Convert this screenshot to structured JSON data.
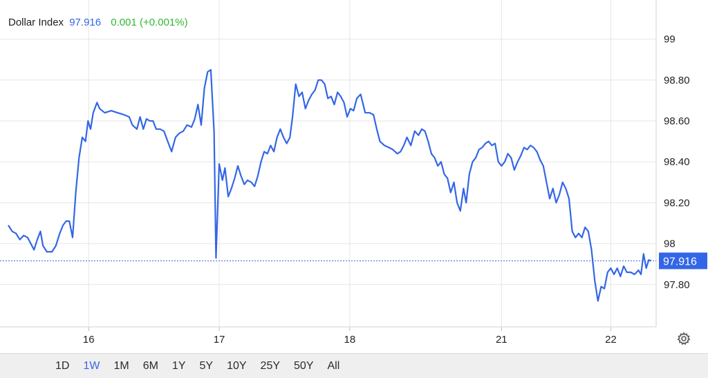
{
  "header": {
    "name": "Dollar Index",
    "price": "97.916",
    "change": "0.001 (+0.001%)"
  },
  "colors": {
    "line": "#3366e6",
    "change": "#2eb82e",
    "grid": "#e6e6e6"
  },
  "range_tabs": [
    {
      "label": "1D",
      "active": false
    },
    {
      "label": "1W",
      "active": true
    },
    {
      "label": "1M",
      "active": false
    },
    {
      "label": "6M",
      "active": false
    },
    {
      "label": "1Y",
      "active": false
    },
    {
      "label": "5Y",
      "active": false
    },
    {
      "label": "10Y",
      "active": false
    },
    {
      "label": "25Y",
      "active": false
    },
    {
      "label": "50Y",
      "active": false
    },
    {
      "label": "All",
      "active": false
    }
  ],
  "icons": {
    "settings": "gear-icon"
  },
  "chart_data": {
    "type": "line",
    "title": "Dollar Index",
    "xlabel": "",
    "ylabel": "",
    "ylim": [
      97.6,
      99.15
    ],
    "xlim": [
      0,
      100
    ],
    "grid": true,
    "y_ticks": [
      {
        "value": 99,
        "label": "99"
      },
      {
        "value": 98.8,
        "label": "98.80"
      },
      {
        "value": 98.6,
        "label": "98.60"
      },
      {
        "value": 98.4,
        "label": "98.40"
      },
      {
        "value": 98.2,
        "label": "98.20"
      },
      {
        "value": 98.0,
        "label": "98"
      },
      {
        "value": 97.8,
        "label": "97.80"
      }
    ],
    "x_ticks": [
      {
        "value": 12.5,
        "label": "16"
      },
      {
        "value": 32.8,
        "label": "17"
      },
      {
        "value": 53.1,
        "label": "18"
      },
      {
        "value": 76.7,
        "label": "21"
      },
      {
        "value": 93.7,
        "label": "22"
      }
    ],
    "last_value": {
      "value": 97.916,
      "label": "97.916"
    },
    "series": [
      {
        "values": [
          [
            0,
            98.09
          ],
          [
            0.6,
            98.06
          ],
          [
            1.2,
            98.05
          ],
          [
            1.8,
            98.02
          ],
          [
            2.4,
            98.04
          ],
          [
            3,
            98.03
          ],
          [
            3.5,
            98.0
          ],
          [
            4,
            97.97
          ],
          [
            4.5,
            98.02
          ],
          [
            5,
            98.06
          ],
          [
            5.4,
            97.99
          ],
          [
            6,
            97.96
          ],
          [
            6.8,
            97.96
          ],
          [
            7.4,
            97.99
          ],
          [
            8,
            98.05
          ],
          [
            8.5,
            98.09
          ],
          [
            9,
            98.11
          ],
          [
            9.5,
            98.11
          ],
          [
            10,
            98.03
          ],
          [
            10.5,
            98.25
          ],
          [
            11,
            98.42
          ],
          [
            11.5,
            98.52
          ],
          [
            12,
            98.5
          ],
          [
            12.4,
            98.6
          ],
          [
            12.8,
            98.56
          ],
          [
            13.2,
            98.64
          ],
          [
            13.8,
            98.69
          ],
          [
            14.2,
            98.66
          ],
          [
            15,
            98.64
          ],
          [
            16,
            98.65
          ],
          [
            17,
            98.64
          ],
          [
            18,
            98.63
          ],
          [
            18.8,
            98.62
          ],
          [
            19.3,
            98.58
          ],
          [
            20,
            98.56
          ],
          [
            20.5,
            98.62
          ],
          [
            21,
            98.56
          ],
          [
            21.5,
            98.61
          ],
          [
            22,
            98.6
          ],
          [
            22.5,
            98.6
          ],
          [
            23,
            98.56
          ],
          [
            23.6,
            98.56
          ],
          [
            24.2,
            98.55
          ],
          [
            24.8,
            98.5
          ],
          [
            25.4,
            98.45
          ],
          [
            26,
            98.52
          ],
          [
            26.6,
            98.54
          ],
          [
            27.2,
            98.55
          ],
          [
            27.8,
            98.58
          ],
          [
            28.5,
            98.57
          ],
          [
            29,
            98.61
          ],
          [
            29.5,
            98.68
          ],
          [
            30,
            98.58
          ],
          [
            30.5,
            98.76
          ],
          [
            31,
            98.84
          ],
          [
            31.5,
            98.85
          ],
          [
            32,
            98.55
          ],
          [
            32.3,
            97.93
          ],
          [
            32.8,
            98.39
          ],
          [
            33.3,
            98.31
          ],
          [
            33.7,
            98.37
          ],
          [
            34.2,
            98.23
          ],
          [
            34.7,
            98.27
          ],
          [
            35.2,
            98.32
          ],
          [
            35.7,
            98.38
          ],
          [
            36.2,
            98.33
          ],
          [
            36.7,
            98.29
          ],
          [
            37.2,
            98.31
          ],
          [
            37.8,
            98.3
          ],
          [
            38.3,
            98.28
          ],
          [
            38.8,
            98.33
          ],
          [
            39.3,
            98.4
          ],
          [
            39.8,
            98.45
          ],
          [
            40.3,
            98.44
          ],
          [
            40.8,
            98.48
          ],
          [
            41.3,
            98.45
          ],
          [
            41.8,
            98.52
          ],
          [
            42.3,
            98.56
          ],
          [
            42.8,
            98.52
          ],
          [
            43.3,
            98.49
          ],
          [
            43.8,
            98.52
          ],
          [
            44.2,
            98.62
          ],
          [
            44.7,
            98.78
          ],
          [
            45.2,
            98.72
          ],
          [
            45.7,
            98.74
          ],
          [
            46.2,
            98.66
          ],
          [
            46.7,
            98.7
          ],
          [
            47.2,
            98.73
          ],
          [
            47.7,
            98.75
          ],
          [
            48.2,
            98.8
          ],
          [
            48.7,
            98.8
          ],
          [
            49.2,
            98.78
          ],
          [
            49.7,
            98.71
          ],
          [
            50.2,
            98.72
          ],
          [
            50.7,
            98.68
          ],
          [
            51.2,
            98.74
          ],
          [
            51.7,
            98.72
          ],
          [
            52.2,
            98.69
          ],
          [
            52.7,
            98.62
          ],
          [
            53.2,
            98.66
          ],
          [
            53.7,
            98.65
          ],
          [
            54.2,
            98.71
          ],
          [
            54.8,
            98.73
          ],
          [
            55.5,
            98.64
          ],
          [
            56.2,
            98.64
          ],
          [
            56.8,
            98.63
          ],
          [
            57.3,
            98.56
          ],
          [
            57.8,
            98.5
          ],
          [
            58.5,
            98.48
          ],
          [
            59.2,
            98.47
          ],
          [
            59.8,
            98.46
          ],
          [
            60.5,
            98.44
          ],
          [
            61,
            98.45
          ],
          [
            61.5,
            98.48
          ],
          [
            62,
            98.52
          ],
          [
            62.6,
            98.48
          ],
          [
            63.2,
            98.55
          ],
          [
            63.8,
            98.53
          ],
          [
            64.3,
            98.56
          ],
          [
            64.8,
            98.55
          ],
          [
            65.3,
            98.5
          ],
          [
            65.8,
            98.44
          ],
          [
            66.3,
            98.42
          ],
          [
            66.8,
            98.38
          ],
          [
            67.3,
            98.4
          ],
          [
            67.8,
            98.34
          ],
          [
            68.3,
            98.32
          ],
          [
            68.8,
            98.25
          ],
          [
            69.3,
            98.3
          ],
          [
            69.8,
            98.2
          ],
          [
            70.3,
            98.16
          ],
          [
            70.8,
            98.27
          ],
          [
            71.2,
            98.2
          ],
          [
            71.7,
            98.34
          ],
          [
            72.2,
            98.4
          ],
          [
            72.7,
            98.42
          ],
          [
            73.2,
            98.46
          ],
          [
            73.7,
            98.47
          ],
          [
            74.2,
            98.49
          ],
          [
            74.7,
            98.5
          ],
          [
            75.2,
            98.48
          ],
          [
            75.7,
            98.49
          ],
          [
            76.2,
            98.4
          ],
          [
            76.7,
            98.38
          ],
          [
            77.2,
            98.4
          ],
          [
            77.7,
            98.44
          ],
          [
            78.2,
            98.42
          ],
          [
            78.7,
            98.36
          ],
          [
            79.2,
            98.4
          ],
          [
            79.7,
            98.43
          ],
          [
            80.2,
            98.47
          ],
          [
            80.7,
            98.46
          ],
          [
            81.2,
            98.48
          ],
          [
            81.7,
            98.47
          ],
          [
            82.2,
            98.45
          ],
          [
            82.7,
            98.41
          ],
          [
            83.2,
            98.38
          ],
          [
            83.7,
            98.3
          ],
          [
            84.2,
            98.22
          ],
          [
            84.7,
            98.27
          ],
          [
            85.2,
            98.2
          ],
          [
            85.7,
            98.24
          ],
          [
            86.2,
            98.3
          ],
          [
            86.7,
            98.27
          ],
          [
            87.2,
            98.22
          ],
          [
            87.7,
            98.06
          ],
          [
            88.2,
            98.03
          ],
          [
            88.7,
            98.05
          ],
          [
            89.2,
            98.03
          ],
          [
            89.7,
            98.08
          ],
          [
            90.2,
            98.06
          ],
          [
            90.7,
            97.97
          ],
          [
            91.2,
            97.82
          ],
          [
            91.7,
            97.72
          ],
          [
            92.2,
            97.79
          ],
          [
            92.7,
            97.78
          ],
          [
            93.2,
            97.86
          ],
          [
            93.7,
            97.88
          ],
          [
            94.2,
            97.85
          ],
          [
            94.7,
            97.88
          ],
          [
            95.2,
            97.84
          ],
          [
            95.7,
            97.89
          ],
          [
            96.2,
            97.86
          ],
          [
            96.8,
            97.86
          ],
          [
            97.4,
            97.85
          ],
          [
            98,
            97.87
          ],
          [
            98.4,
            97.85
          ],
          [
            98.8,
            97.95
          ],
          [
            99.2,
            97.88
          ],
          [
            99.6,
            97.92
          ],
          [
            100,
            97.916
          ]
        ]
      }
    ]
  }
}
